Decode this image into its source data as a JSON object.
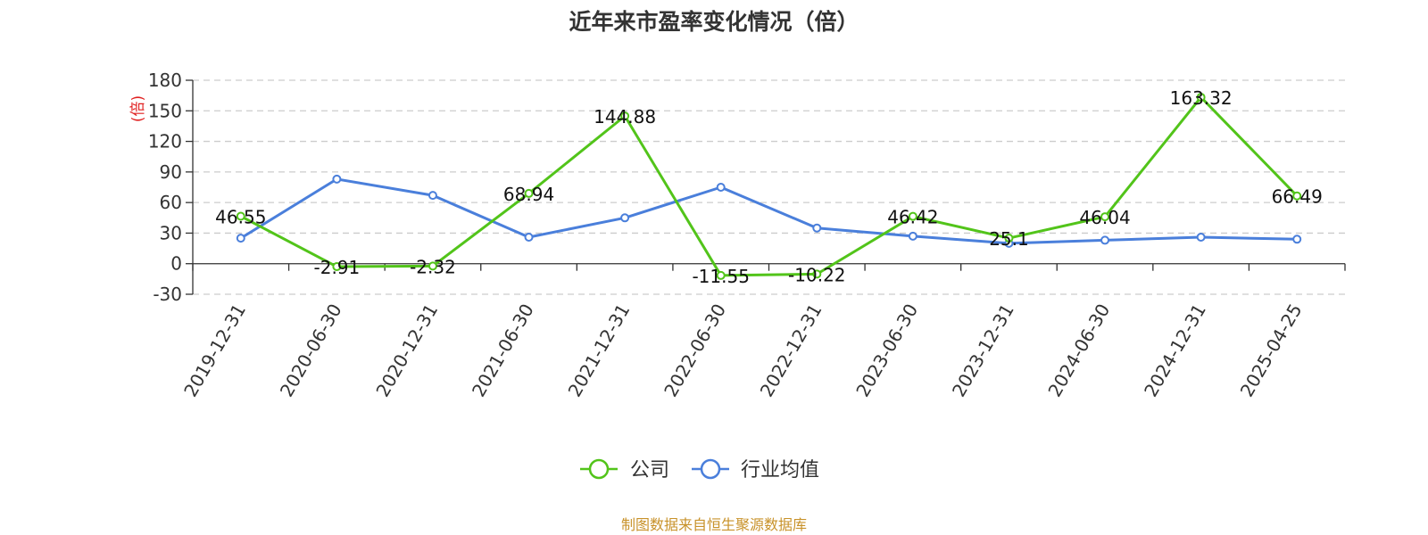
{
  "chart_data": {
    "type": "line",
    "title": "近年来市盈率变化情况（倍）",
    "ylabel": "(倍)",
    "ylim": [
      -30,
      180
    ],
    "yticks": [
      -30,
      0,
      30,
      60,
      90,
      120,
      150,
      180
    ],
    "grid": true,
    "legend_position": "bottom",
    "categories": [
      "2019-12-31",
      "2020-06-30",
      "2020-12-31",
      "2021-06-30",
      "2021-12-31",
      "2022-06-30",
      "2022-12-31",
      "2023-06-30",
      "2023-12-31",
      "2024-06-30",
      "2024-12-31",
      "2025-04-25"
    ],
    "series": [
      {
        "name": "公司",
        "color": "#52c41a",
        "values": [
          46.55,
          -2.91,
          -2.32,
          68.94,
          144.88,
          -11.55,
          -10.22,
          46.42,
          25.1,
          46.04,
          163.32,
          66.49
        ],
        "show_labels": true
      },
      {
        "name": "行业均值",
        "color": "#4a7fdb",
        "values": [
          25,
          83,
          67,
          26,
          45,
          75,
          35,
          27,
          20,
          23,
          26,
          24
        ],
        "show_labels": false
      }
    ],
    "source": "制图数据来自恒生聚源数据库"
  }
}
